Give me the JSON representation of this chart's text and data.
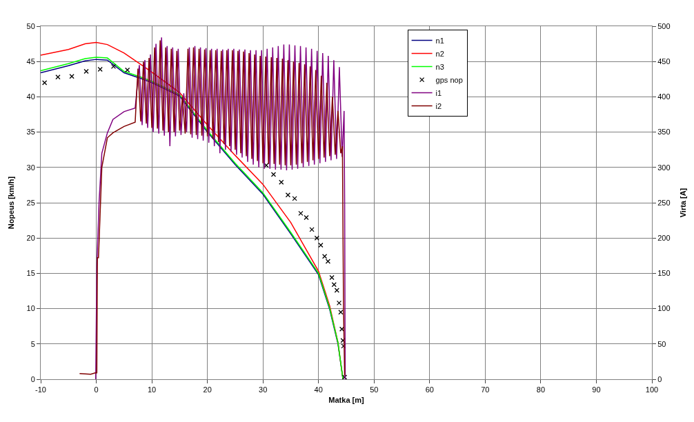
{
  "chart_data": {
    "type": "line",
    "xlabel": "Matka [m]",
    "ylabel": "Nopeus [km/h]",
    "y2label": "Virta [A]",
    "xlim": [
      -10,
      100
    ],
    "xticks": [
      -10,
      0,
      10,
      20,
      30,
      40,
      50,
      60,
      70,
      80,
      90,
      100
    ],
    "ylim": [
      0,
      50
    ],
    "yticks": [
      0,
      5,
      10,
      15,
      20,
      25,
      30,
      35,
      40,
      45,
      50
    ],
    "y2lim": [
      0,
      500
    ],
    "y2ticks": [
      0,
      50,
      100,
      150,
      200,
      250,
      300,
      350,
      400,
      450,
      500
    ],
    "grid": true,
    "legend": "top right",
    "marker": "none",
    "line_style": "solid",
    "series": [
      {
        "name": "n1",
        "color": "#000080",
        "x": [
          -10,
          -5,
          -2,
          0,
          2,
          5,
          8,
          10,
          15,
          20,
          25,
          30,
          35,
          40,
          42,
          43.5,
          44.4
        ],
        "values": [
          43.4,
          44.4,
          45.1,
          45.3,
          45.2,
          43.4,
          42.6,
          42.0,
          40.1,
          35.0,
          30.4,
          26.2,
          20.6,
          14.8,
          9.9,
          5.0,
          0
        ]
      },
      {
        "name": "n2",
        "color": "#ff0000",
        "x": [
          -10,
          -5,
          -2,
          0,
          2,
          5,
          8,
          10,
          15,
          20,
          25,
          30,
          35,
          40,
          42,
          43.5,
          44.4
        ],
        "values": [
          45.9,
          46.7,
          47.5,
          47.7,
          47.4,
          46.2,
          44.6,
          43.5,
          40.6,
          36.0,
          31.7,
          27.6,
          22.2,
          15.3,
          10.4,
          5.2,
          0
        ]
      },
      {
        "name": "n3",
        "color": "#00ff00",
        "x": [
          -10,
          -5,
          -2,
          0,
          2,
          5,
          8,
          10,
          15,
          20,
          25,
          30,
          35,
          40,
          42,
          43.5,
          44.4
        ],
        "values": [
          43.7,
          44.7,
          45.4,
          45.6,
          45.5,
          43.6,
          42.8,
          42.2,
          40.3,
          35.2,
          30.6,
          26.4,
          20.8,
          15.0,
          10.1,
          5.2,
          0
        ]
      },
      {
        "name": "gps nop",
        "type": "scatter",
        "marker": "cross",
        "color": "#000000",
        "x": [
          -9.3,
          -6.9,
          -4.4,
          -1.8,
          0.7,
          3.1,
          5.6,
          30.6,
          31.9,
          33.3,
          34.5,
          35.7,
          36.8,
          37.8,
          38.8,
          39.7,
          40.4,
          41.1,
          41.7,
          42.4,
          42.8,
          43.3,
          43.7,
          44.0,
          44.2,
          44.4,
          44.5,
          44.7
        ],
        "values": [
          42.0,
          42.8,
          42.9,
          43.6,
          43.9,
          44.3,
          43.8,
          30.3,
          29.0,
          27.9,
          26.1,
          25.6,
          23.5,
          22.9,
          21.2,
          20.0,
          19.0,
          17.4,
          16.7,
          14.4,
          13.4,
          12.6,
          10.8,
          9.5,
          7.1,
          5.5,
          4.7,
          0.3
        ]
      },
      {
        "name": "i1",
        "color": "#800080",
        "axis": "y2",
        "x": [
          -0.1,
          0.1,
          0.5,
          1,
          2,
          3,
          5,
          7,
          7.75,
          8.25,
          8.75,
          9.25,
          9.75,
          10.25,
          10.75,
          11.25,
          11.75,
          12.25,
          12.75,
          13.25,
          13.75,
          14.25,
          14.75,
          15.25,
          15.75,
          16.25,
          16.75,
          17.25,
          17.75,
          18.25,
          18.75,
          19.25,
          19.75,
          20.25,
          20.75,
          21.25,
          21.75,
          22.25,
          22.75,
          23.25,
          23.75,
          24.25,
          24.75,
          25.25,
          25.75,
          26.25,
          26.75,
          27.25,
          27.75,
          28.25,
          28.75,
          29.25,
          29.75,
          30.25,
          30.75,
          31.25,
          31.75,
          32.25,
          32.75,
          33.25,
          33.75,
          34.25,
          34.75,
          35.25,
          35.75,
          36.25,
          36.75,
          37.25,
          37.75,
          38.25,
          38.75,
          39.25,
          39.75,
          40.25,
          40.75,
          41.25,
          41.75,
          42.25,
          42.75,
          43.25,
          43.75,
          44.25,
          44.6,
          44.7,
          44.8
        ],
        "values": [
          0,
          160,
          250,
          320,
          349,
          368,
          379,
          384,
          445,
          360,
          452,
          356,
          460,
          350,
          475,
          348,
          484,
          345,
          472,
          330,
          470,
          344,
          468,
          346,
          405,
          350,
          470,
          342,
          472,
          340,
          470,
          338,
          469,
          335,
          468,
          330,
          468,
          320,
          467,
          325,
          468,
          322,
          468,
          318,
          467,
          314,
          467,
          308,
          466,
          304,
          466,
          300,
          466,
          298,
          468,
          298,
          470,
          297,
          472,
          297,
          474,
          296,
          474,
          297,
          473,
          298,
          472,
          300,
          470,
          302,
          468,
          304,
          465,
          306,
          462,
          308,
          458,
          310,
          452,
          312,
          442,
          315,
          380,
          250,
          0
        ]
      },
      {
        "name": "i2",
        "color": "#800000",
        "axis": "y2",
        "x": [
          -3,
          -1,
          -0.2,
          0.1,
          0.2,
          0.4,
          1,
          2,
          3,
          5,
          7,
          7.5,
          8,
          8.5,
          9,
          9.5,
          10,
          10.5,
          11,
          11.5,
          12,
          12.5,
          13,
          13.5,
          14,
          14.5,
          15,
          15.5,
          16,
          16.5,
          17,
          17.5,
          18,
          18.5,
          19,
          19.5,
          20,
          20.5,
          21,
          21.5,
          22,
          22.5,
          23,
          23.5,
          24,
          24.5,
          25,
          25.5,
          26,
          26.5,
          27,
          27.5,
          28,
          28.5,
          29,
          29.5,
          30,
          30.5,
          31,
          31.5,
          32,
          32.5,
          33,
          33.5,
          34,
          34.5,
          35,
          35.5,
          36,
          36.5,
          37,
          37.5,
          38,
          38.5,
          39,
          39.5,
          40,
          40.5,
          41,
          41.5,
          42,
          42.5,
          43,
          43.5,
          44,
          44.3,
          44.5,
          44.7
        ],
        "values": [
          8,
          7,
          9,
          9,
          172,
          172,
          300,
          342,
          349,
          358,
          364,
          440,
          365,
          450,
          362,
          455,
          356,
          470,
          355,
          480,
          352,
          470,
          350,
          468,
          350,
          465,
          352,
          400,
          348,
          468,
          347,
          470,
          346,
          468,
          345,
          467,
          344,
          466,
          340,
          466,
          336,
          465,
          333,
          466,
          330,
          466,
          325,
          465,
          320,
          464,
          316,
          462,
          312,
          460,
          309,
          458,
          306,
          457,
          305,
          456,
          305,
          455,
          304,
          454,
          303,
          452,
          303,
          450,
          304,
          448,
          306,
          446,
          308,
          443,
          310,
          438,
          312,
          430,
          314,
          420,
          316,
          400,
          318,
          380,
          320,
          330,
          100,
          5
        ]
      }
    ]
  }
}
